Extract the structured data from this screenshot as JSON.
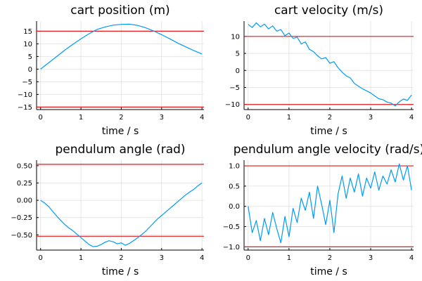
{
  "colors": {
    "series": "#009af9",
    "limit": "#e41a1c"
  },
  "chart_data": [
    {
      "type": "line",
      "title": "cart position (m)",
      "xlabel": "time / s",
      "ylabel": "",
      "xlim": [
        -0.1,
        4.05
      ],
      "ylim": [
        -16,
        19
      ],
      "xticks": [
        0,
        1,
        2,
        3,
        4
      ],
      "yticks": [
        -15,
        -10,
        -5,
        0,
        5,
        10,
        15
      ],
      "ytick_labels": [
        "−15",
        "−10",
        "−5",
        "0",
        "5",
        "10",
        "15"
      ],
      "grid": true,
      "legend": "none",
      "limits": [
        15,
        -15
      ],
      "series": [
        {
          "x": [
            0,
            0.2,
            0.4,
            0.6,
            0.8,
            1.0,
            1.2,
            1.4,
            1.6,
            1.8,
            2.0,
            2.2,
            2.4,
            2.6,
            2.8,
            3.0,
            3.2,
            3.4,
            3.6,
            3.8,
            4.0
          ],
          "y": [
            0,
            2.5,
            5.0,
            7.5,
            9.8,
            12.0,
            14.0,
            15.7,
            16.7,
            17.4,
            17.7,
            17.8,
            17.3,
            16.4,
            15.1,
            13.6,
            12.0,
            10.3,
            8.8,
            7.3,
            6.0
          ]
        }
      ]
    },
    {
      "type": "line",
      "title": "cart velocity (m/s)",
      "xlabel": "time / s",
      "ylabel": "",
      "xlim": [
        -0.1,
        4.05
      ],
      "ylim": [
        -11.5,
        14.5
      ],
      "xticks": [
        0,
        1,
        2,
        3,
        4
      ],
      "yticks": [
        -10,
        -5,
        0,
        5,
        10
      ],
      "ytick_labels": [
        "−10",
        "−5",
        "0",
        "5",
        "10"
      ],
      "grid": true,
      "legend": "none",
      "limits": [
        10,
        -10
      ],
      "series": [
        {
          "x": [
            0,
            0.1,
            0.2,
            0.3,
            0.4,
            0.5,
            0.6,
            0.7,
            0.8,
            0.9,
            1.0,
            1.1,
            1.2,
            1.3,
            1.4,
            1.5,
            1.6,
            1.7,
            1.8,
            1.9,
            2.0,
            2.1,
            2.2,
            2.3,
            2.4,
            2.5,
            2.6,
            2.7,
            2.8,
            2.9,
            3.0,
            3.1,
            3.2,
            3.3,
            3.4,
            3.5,
            3.6,
            3.7,
            3.8,
            3.9,
            4.0
          ],
          "y": [
            13.5,
            12.6,
            14.0,
            12.8,
            13.6,
            12.2,
            13.1,
            11.5,
            12.0,
            10.2,
            11.0,
            9.4,
            9.8,
            7.8,
            8.4,
            6.2,
            5.5,
            4.3,
            3.4,
            3.8,
            2.1,
            2.6,
            0.8,
            -0.5,
            -1.6,
            -2.2,
            -3.8,
            -4.6,
            -5.4,
            -6.0,
            -6.6,
            -7.5,
            -8.3,
            -8.6,
            -9.3,
            -9.6,
            -10.4,
            -9.2,
            -8.4,
            -8.8,
            -7.2
          ]
        }
      ]
    },
    {
      "type": "line",
      "title": "pendulum angle (rad)",
      "xlabel": "time / s",
      "ylabel": "",
      "xlim": [
        -0.1,
        4.05
      ],
      "ylim": [
        -0.72,
        0.58
      ],
      "xticks": [
        0,
        1,
        2,
        3,
        4
      ],
      "yticks": [
        -0.5,
        -0.25,
        0,
        0.25,
        0.5
      ],
      "ytick_labels": [
        "−0.50",
        "−0.25",
        "0.00",
        "0.25",
        "0.50"
      ],
      "grid": true,
      "legend": "none",
      "limits": [
        0.52,
        -0.52
      ],
      "series": [
        {
          "x": [
            0,
            0.1,
            0.2,
            0.3,
            0.4,
            0.5,
            0.6,
            0.7,
            0.8,
            0.9,
            1.0,
            1.1,
            1.2,
            1.3,
            1.4,
            1.5,
            1.6,
            1.7,
            1.8,
            1.9,
            2.0,
            2.1,
            2.2,
            2.3,
            2.4,
            2.5,
            2.6,
            2.7,
            2.8,
            2.9,
            3.0,
            3.1,
            3.2,
            3.3,
            3.4,
            3.5,
            3.6,
            3.7,
            3.8,
            3.9,
            4.0
          ],
          "y": [
            0,
            -0.04,
            -0.09,
            -0.16,
            -0.23,
            -0.29,
            -0.35,
            -0.4,
            -0.44,
            -0.49,
            -0.54,
            -0.59,
            -0.64,
            -0.67,
            -0.665,
            -0.64,
            -0.605,
            -0.585,
            -0.6,
            -0.63,
            -0.615,
            -0.65,
            -0.625,
            -0.585,
            -0.545,
            -0.5,
            -0.45,
            -0.39,
            -0.33,
            -0.27,
            -0.22,
            -0.17,
            -0.12,
            -0.07,
            -0.02,
            0.03,
            0.08,
            0.12,
            0.16,
            0.21,
            0.25
          ]
        }
      ]
    },
    {
      "type": "line",
      "title": "pendulum angle velocity (rad/s)",
      "xlabel": "time / s",
      "ylabel": "",
      "xlim": [
        -0.1,
        4.05
      ],
      "ylim": [
        -1.08,
        1.14
      ],
      "xticks": [
        0,
        1,
        2,
        3,
        4
      ],
      "yticks": [
        -1.0,
        -0.5,
        0,
        0.5,
        1.0
      ],
      "ytick_labels": [
        "−1.0",
        "−0.5",
        "0.0",
        "0.5",
        "1.0"
      ],
      "grid": true,
      "legend": "none",
      "limits": [
        1.0,
        -1.0
      ],
      "series": [
        {
          "x": [
            0,
            0.1,
            0.2,
            0.3,
            0.4,
            0.5,
            0.6,
            0.7,
            0.8,
            0.9,
            1.0,
            1.1,
            1.2,
            1.3,
            1.4,
            1.5,
            1.6,
            1.7,
            1.8,
            1.9,
            2.0,
            2.1,
            2.2,
            2.3,
            2.4,
            2.5,
            2.6,
            2.7,
            2.8,
            2.9,
            3.0,
            3.1,
            3.2,
            3.3,
            3.4,
            3.5,
            3.6,
            3.7,
            3.8,
            3.9,
            4.0
          ],
          "y": [
            0.0,
            -0.65,
            -0.35,
            -0.85,
            -0.3,
            -0.7,
            -0.15,
            -0.55,
            -0.9,
            -0.25,
            -0.75,
            -0.05,
            -0.4,
            0.2,
            -0.1,
            0.35,
            -0.3,
            0.5,
            0.05,
            -0.45,
            0.15,
            -0.65,
            0.3,
            0.75,
            0.2,
            0.7,
            0.35,
            0.8,
            0.25,
            0.7,
            0.45,
            0.85,
            0.4,
            0.75,
            0.55,
            0.9,
            0.6,
            1.05,
            0.65,
            1.0,
            0.4
          ]
        }
      ]
    }
  ]
}
